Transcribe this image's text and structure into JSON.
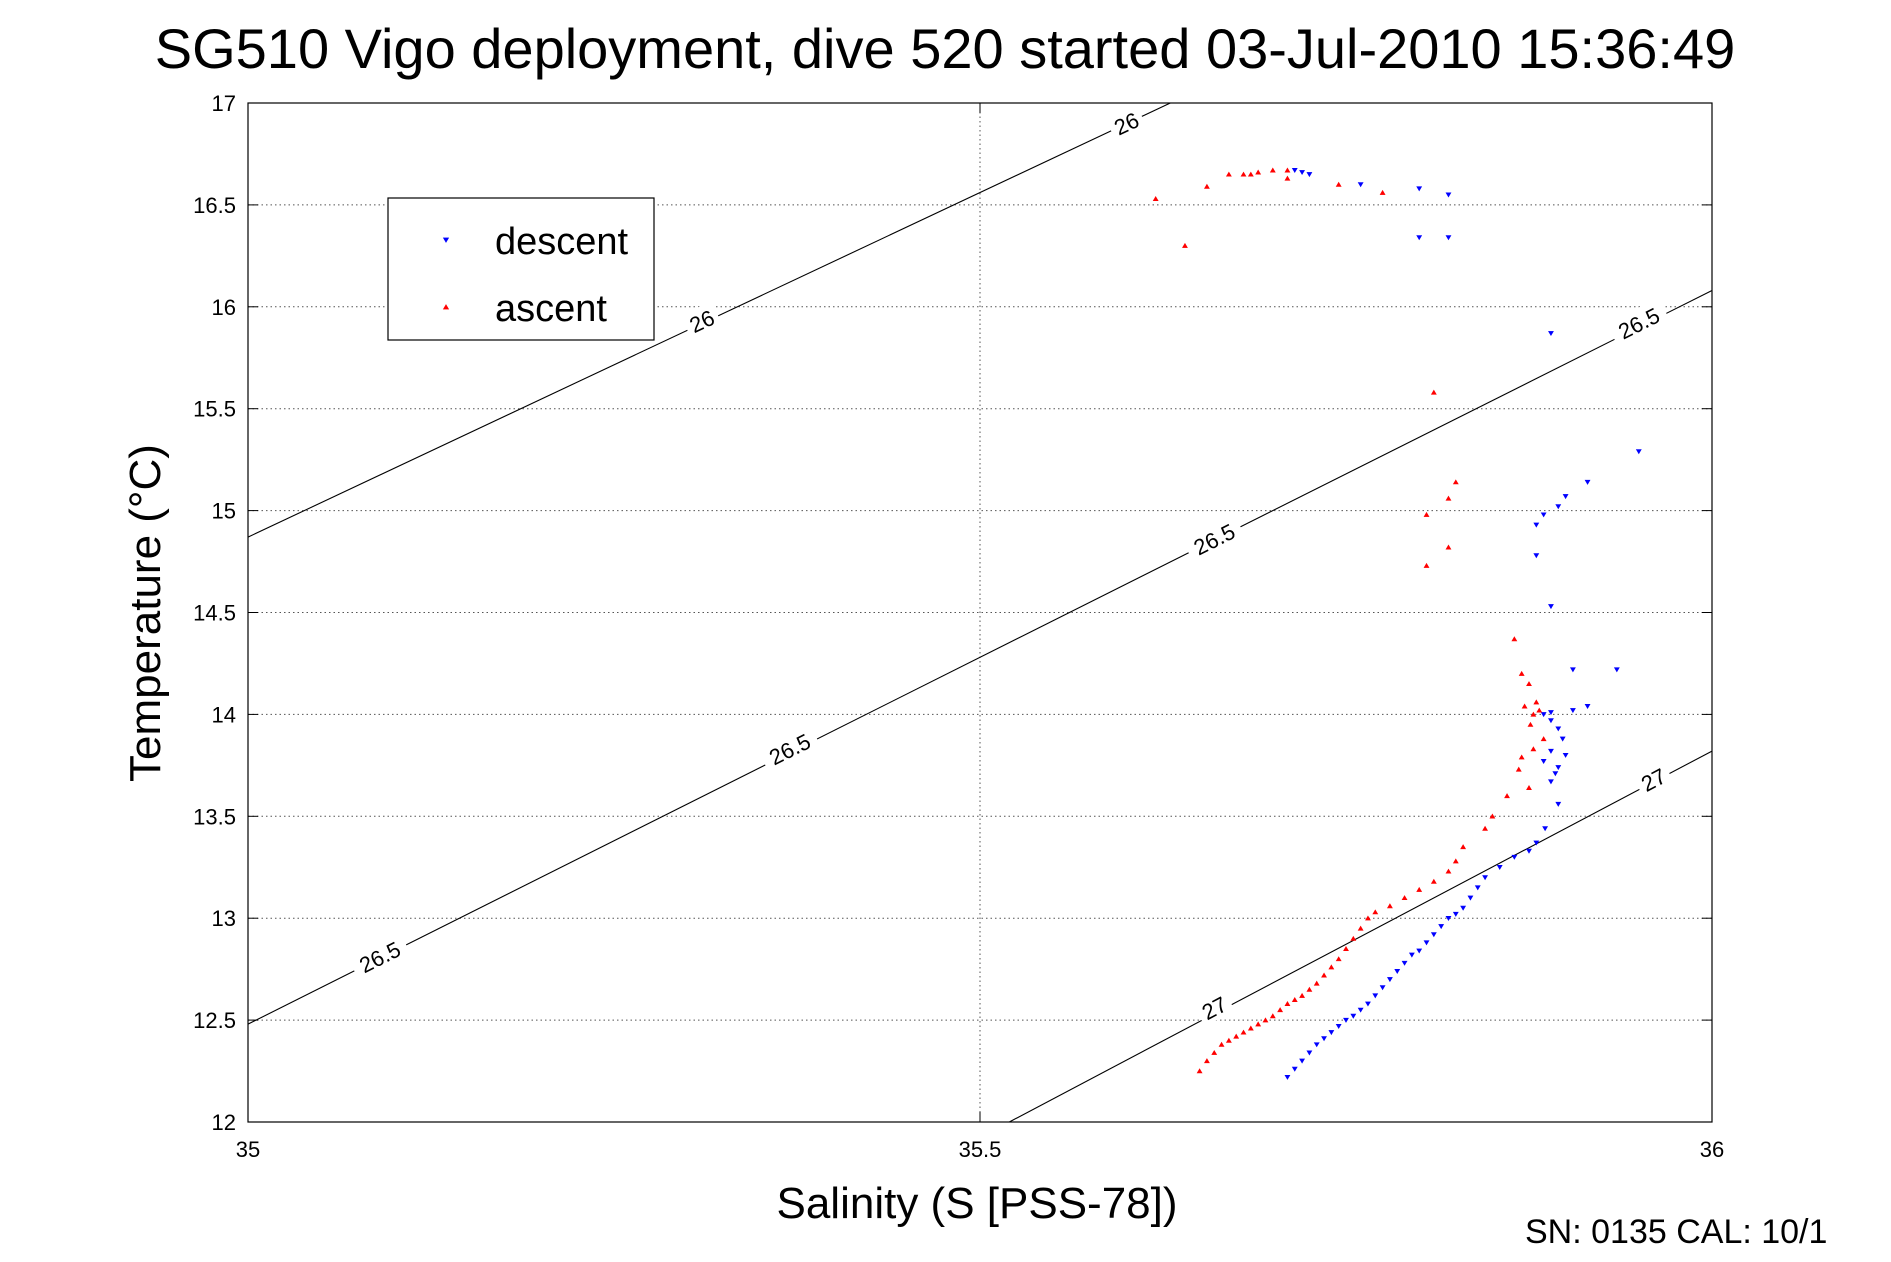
{
  "chart_data": {
    "type": "scatter",
    "title": "SG510 Vigo deployment, dive 520 started 03-Jul-2010 15:36:49",
    "xlabel": "Salinity (S [PSS-78])",
    "ylabel": "Temperature (°C)",
    "xlim": [
      35,
      36
    ],
    "ylim": [
      12,
      17
    ],
    "x_ticks": [
      35,
      35.5,
      36
    ],
    "x_tick_labels": [
      "35",
      "35.5",
      "36"
    ],
    "y_ticks": [
      12,
      12.5,
      13,
      13.5,
      14,
      14.5,
      15,
      15.5,
      16,
      16.5,
      17
    ],
    "y_tick_labels": [
      "12",
      "12.5",
      "13",
      "13.5",
      "14",
      "14.5",
      "15",
      "15.5",
      "16",
      "16.5",
      "17"
    ],
    "grid": true,
    "legend_position": "upper-left",
    "footer": "SN: 0135  CAL: 10/1",
    "series": [
      {
        "name": "descent",
        "marker": "triangle-down",
        "color": "#0000ff",
        "x": [
          35.715,
          35.72,
          35.725,
          35.76,
          35.8,
          35.82,
          35.82,
          35.8,
          35.89,
          35.95,
          35.915,
          35.9,
          35.895,
          35.885,
          35.88,
          35.88,
          35.89,
          35.905,
          35.935,
          35.915,
          35.905,
          35.89,
          35.885,
          35.89,
          35.895,
          35.898,
          35.89,
          35.885,
          35.9,
          35.895,
          35.893,
          35.89,
          35.895,
          35.886,
          35.88,
          35.875,
          35.865,
          35.855,
          35.845,
          35.84,
          35.835,
          35.83,
          35.825,
          35.82,
          35.815,
          35.81,
          35.805,
          35.8,
          35.795,
          35.79,
          35.785,
          35.78,
          35.775,
          35.77,
          35.765,
          35.76,
          35.755,
          35.75,
          35.745,
          35.74,
          35.735,
          35.73,
          35.725,
          35.72,
          35.715,
          35.71
        ],
        "y": [
          16.67,
          16.66,
          16.65,
          16.6,
          16.58,
          16.55,
          16.34,
          16.34,
          15.87,
          15.29,
          15.14,
          15.07,
          15.02,
          14.98,
          14.93,
          14.78,
          14.53,
          14.22,
          14.22,
          14.04,
          14.02,
          14.01,
          14.0,
          13.97,
          13.93,
          13.88,
          13.82,
          13.77,
          13.8,
          13.74,
          13.71,
          13.67,
          13.56,
          13.44,
          13.37,
          13.33,
          13.3,
          13.25,
          13.2,
          13.15,
          13.1,
          13.05,
          13.02,
          13.0,
          12.96,
          12.92,
          12.88,
          12.84,
          12.82,
          12.78,
          12.74,
          12.7,
          12.66,
          12.62,
          12.58,
          12.55,
          12.52,
          12.5,
          12.47,
          12.44,
          12.41,
          12.38,
          12.34,
          12.3,
          12.26,
          12.22
        ]
      },
      {
        "name": "ascent",
        "marker": "triangle-up",
        "color": "#ff0000",
        "x": [
          35.62,
          35.64,
          35.655,
          35.67,
          35.68,
          35.685,
          35.69,
          35.7,
          35.71,
          35.71,
          35.745,
          35.775,
          35.81,
          35.82,
          35.825,
          35.805,
          35.82,
          35.805,
          35.865,
          35.87,
          35.875,
          35.872,
          35.878,
          35.88,
          35.882,
          35.876,
          35.885,
          35.878,
          35.87,
          35.868,
          35.875,
          35.86,
          35.85,
          35.845,
          35.83,
          35.825,
          35.82,
          35.81,
          35.8,
          35.79,
          35.78,
          35.77,
          35.765,
          35.76,
          35.755,
          35.75,
          35.745,
          35.74,
          35.735,
          35.73,
          35.725,
          35.72,
          35.715,
          35.71,
          35.705,
          35.7,
          35.695,
          35.69,
          35.685,
          35.68,
          35.675,
          35.67,
          35.665,
          35.66,
          35.655,
          35.65
        ],
        "y": [
          16.53,
          16.3,
          16.59,
          16.65,
          16.65,
          16.65,
          16.66,
          16.67,
          16.67,
          16.63,
          16.6,
          16.56,
          15.58,
          15.06,
          15.14,
          14.98,
          14.82,
          14.73,
          14.37,
          14.2,
          14.15,
          14.04,
          14.0,
          14.06,
          14.02,
          13.95,
          13.88,
          13.83,
          13.79,
          13.73,
          13.64,
          13.6,
          13.5,
          13.44,
          13.35,
          13.28,
          13.23,
          13.18,
          13.14,
          13.1,
          13.06,
          13.03,
          13.0,
          12.95,
          12.9,
          12.85,
          12.8,
          12.76,
          12.72,
          12.68,
          12.65,
          12.62,
          12.6,
          12.58,
          12.55,
          12.52,
          12.5,
          12.48,
          12.46,
          12.44,
          12.42,
          12.4,
          12.38,
          12.34,
          12.3,
          12.25
        ]
      }
    ],
    "isopycnals": [
      {
        "label": "26",
        "points": [
          [
            35.0,
            14.87
          ],
          [
            35.63,
            17.0
          ]
        ],
        "label_positions": [
          [
            35.31,
            15.93
          ],
          [
            35.6,
            16.9
          ]
        ]
      },
      {
        "label": "26.5",
        "points": [
          [
            35.0,
            12.48
          ],
          [
            36.0,
            16.08
          ]
        ],
        "label_positions": [
          [
            35.09,
            12.81
          ],
          [
            35.37,
            13.83
          ],
          [
            35.66,
            14.86
          ],
          [
            35.95,
            15.92
          ]
        ]
      },
      {
        "label": "27",
        "points": [
          [
            35.52,
            12.0
          ],
          [
            36.0,
            13.82
          ]
        ],
        "label_positions": [
          [
            35.66,
            12.56
          ],
          [
            35.96,
            13.68
          ]
        ]
      }
    ]
  }
}
